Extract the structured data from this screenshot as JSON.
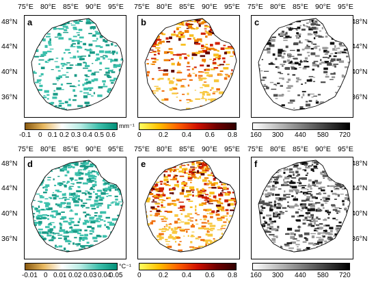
{
  "lon_ticks": [
    "75°E",
    "80°E",
    "85°E",
    "90°E",
    "95°E"
  ],
  "lat_ticks": [
    "48°N",
    "44°N",
    "40°N",
    "36°N"
  ],
  "panels": [
    {
      "label": "a",
      "fill": "#2eb8a4",
      "style": "teal",
      "density": "low"
    },
    {
      "label": "b",
      "fill": "#f0a000",
      "style": "warm",
      "density": "low"
    },
    {
      "label": "c",
      "fill": "#555555",
      "style": "gray",
      "density": "low"
    },
    {
      "label": "d",
      "fill": "#2eb8a4",
      "style": "teal",
      "density": "high"
    },
    {
      "label": "e",
      "fill": "#d04010",
      "style": "warm",
      "density": "high"
    },
    {
      "label": "f",
      "fill": "#555555",
      "style": "gray",
      "density": "high"
    }
  ],
  "colorbars": {
    "row1": {
      "teal": {
        "ticks": [
          "-0.1",
          "0",
          "0.1",
          "0.2",
          "0.3",
          "0.4",
          "0.5",
          "0.6"
        ],
        "unit": "mm⁻¹",
        "colors": [
          "#8a5a10",
          "#e8b860",
          "#ffffff",
          "#b8ece4",
          "#40c0ac",
          "#009078"
        ]
      },
      "warm": {
        "ticks": [
          "0",
          "0.2",
          "0.4",
          "0.6",
          "0.8"
        ],
        "colors": [
          "#ffff60",
          "#ffc000",
          "#ff6000",
          "#d01000",
          "#700000",
          "#300000"
        ]
      },
      "gray": {
        "ticks": [
          "160",
          "300",
          "440",
          "580",
          "720"
        ],
        "colors": [
          "#ffffff",
          "#c0c0c0",
          "#808080",
          "#404040",
          "#000000"
        ]
      }
    },
    "row2": {
      "teal": {
        "ticks": [
          "-0.01",
          "0",
          "0.01",
          "0.02",
          "0.03",
          "0.04",
          "0.05"
        ],
        "unit": "°C⁻¹",
        "colors": [
          "#8a5a10",
          "#e8b860",
          "#ffffff",
          "#b8ece4",
          "#40c0ac",
          "#009078"
        ]
      },
      "warm": {
        "ticks": [
          "0",
          "0.2",
          "0.4",
          "0.6",
          "0.8"
        ],
        "colors": [
          "#ffff60",
          "#ffc000",
          "#ff6000",
          "#d01000",
          "#700000",
          "#300000"
        ]
      },
      "gray": {
        "ticks": [
          "160",
          "300",
          "440",
          "580",
          "720"
        ],
        "colors": [
          "#ffffff",
          "#c0c0c0",
          "#808080",
          "#404040",
          "#000000"
        ]
      }
    }
  }
}
